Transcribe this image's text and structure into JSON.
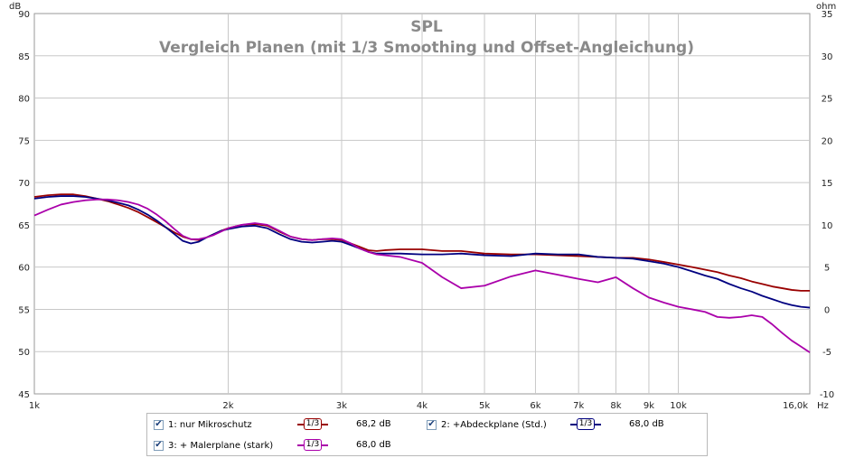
{
  "chart_data": {
    "type": "line",
    "title": "SPL",
    "subtitle": "Vergleich Planen (mit 1/3 Smoothing und Offset-Angleichung)",
    "xlabel": "Hz",
    "ylabel": "dB",
    "y2label": "ohm",
    "x_scale": "log",
    "xlim": [
      1000,
      16000
    ],
    "ylim": [
      45,
      90
    ],
    "y2lim": [
      -10,
      35
    ],
    "grid": true,
    "x_ticks": [
      {
        "value": 1000,
        "label": "1k"
      },
      {
        "value": 2000,
        "label": "2k"
      },
      {
        "value": 3000,
        "label": "3k"
      },
      {
        "value": 4000,
        "label": "4k"
      },
      {
        "value": 5000,
        "label": "5k"
      },
      {
        "value": 6000,
        "label": "6k"
      },
      {
        "value": 7000,
        "label": "7k"
      },
      {
        "value": 8000,
        "label": "8k"
      },
      {
        "value": 9000,
        "label": "9k"
      },
      {
        "value": 10000,
        "label": "10k"
      },
      {
        "value": 16000,
        "label": "16,0k"
      }
    ],
    "x_unit": "Hz",
    "y_ticks": [
      45,
      50,
      55,
      60,
      65,
      70,
      75,
      80,
      85,
      90
    ],
    "y2_ticks": [
      -10,
      -5,
      0,
      5,
      10,
      15,
      20,
      25,
      30,
      35
    ],
    "series": [
      {
        "name": "1: nur Mikroschutz",
        "color": "#990000",
        "x": [
          1000,
          1050,
          1100,
          1150,
          1200,
          1250,
          1300,
          1350,
          1400,
          1450,
          1500,
          1550,
          1600,
          1650,
          1700,
          1750,
          1800,
          1850,
          1900,
          1950,
          2000,
          2100,
          2200,
          2300,
          2400,
          2500,
          2600,
          2700,
          2800,
          2900,
          3000,
          3100,
          3200,
          3300,
          3400,
          3500,
          3700,
          4000,
          4300,
          4600,
          5000,
          5500,
          6000,
          6500,
          7000,
          7500,
          8000,
          8500,
          9000,
          9500,
          10000,
          10500,
          11000,
          11500,
          12000,
          12500,
          13000,
          13500,
          14000,
          14500,
          15000,
          15500,
          16000
        ],
        "y": [
          68.3,
          68.5,
          68.6,
          68.6,
          68.4,
          68.1,
          67.8,
          67.4,
          67.0,
          66.5,
          65.9,
          65.3,
          64.7,
          64.1,
          63.6,
          63.3,
          63.2,
          63.5,
          63.9,
          64.3,
          64.6,
          65.0,
          65.1,
          64.9,
          64.2,
          63.6,
          63.3,
          63.2,
          63.3,
          63.3,
          63.2,
          62.8,
          62.4,
          62.0,
          61.9,
          62.0,
          62.1,
          62.1,
          61.9,
          61.9,
          61.6,
          61.5,
          61.5,
          61.4,
          61.3,
          61.2,
          61.1,
          61.1,
          60.9,
          60.6,
          60.3,
          60.0,
          59.7,
          59.4,
          59.0,
          58.7,
          58.3,
          58.0,
          57.7,
          57.5,
          57.3,
          57.2,
          57.2
        ]
      },
      {
        "name": "2: +Abdeckplane (Std.)",
        "color": "#000080",
        "x": [
          1000,
          1050,
          1100,
          1150,
          1200,
          1250,
          1300,
          1350,
          1400,
          1450,
          1500,
          1550,
          1600,
          1650,
          1700,
          1750,
          1800,
          1850,
          1900,
          1950,
          2000,
          2100,
          2200,
          2300,
          2400,
          2500,
          2600,
          2700,
          2800,
          2900,
          3000,
          3100,
          3200,
          3300,
          3400,
          3500,
          3700,
          4000,
          4300,
          4600,
          5000,
          5500,
          6000,
          6500,
          7000,
          7500,
          8000,
          8500,
          9000,
          9500,
          10000,
          10500,
          11000,
          11500,
          12000,
          12500,
          13000,
          13500,
          14000,
          14500,
          15000,
          15500,
          16000
        ],
        "y": [
          68.1,
          68.3,
          68.4,
          68.4,
          68.3,
          68.1,
          67.9,
          67.6,
          67.3,
          66.8,
          66.2,
          65.5,
          64.7,
          63.9,
          63.1,
          62.8,
          63.0,
          63.5,
          63.9,
          64.3,
          64.5,
          64.8,
          64.9,
          64.6,
          63.9,
          63.3,
          63.0,
          62.9,
          63.0,
          63.1,
          63.0,
          62.6,
          62.2,
          61.8,
          61.6,
          61.6,
          61.6,
          61.5,
          61.5,
          61.6,
          61.4,
          61.3,
          61.6,
          61.5,
          61.5,
          61.2,
          61.1,
          61.0,
          60.7,
          60.4,
          60.0,
          59.5,
          59.0,
          58.6,
          58.0,
          57.5,
          57.1,
          56.6,
          56.2,
          55.8,
          55.5,
          55.3,
          55.2
        ]
      },
      {
        "name": "3: + Malerplane (stark)",
        "color": "#aa00aa",
        "x": [
          1000,
          1050,
          1100,
          1150,
          1200,
          1250,
          1300,
          1350,
          1400,
          1450,
          1500,
          1550,
          1600,
          1650,
          1700,
          1750,
          1800,
          1850,
          1900,
          1950,
          2000,
          2100,
          2200,
          2300,
          2400,
          2500,
          2600,
          2700,
          2800,
          2900,
          3000,
          3100,
          3200,
          3300,
          3400,
          3500,
          3700,
          4000,
          4300,
          4600,
          5000,
          5500,
          6000,
          6500,
          7000,
          7500,
          8000,
          8500,
          9000,
          9500,
          10000,
          10500,
          11000,
          11500,
          12000,
          12500,
          13000,
          13500,
          14000,
          14500,
          15000,
          15500,
          16000
        ],
        "y": [
          66.1,
          66.8,
          67.4,
          67.7,
          67.9,
          68.0,
          68.0,
          67.9,
          67.7,
          67.4,
          66.9,
          66.2,
          65.4,
          64.5,
          63.7,
          63.3,
          63.3,
          63.5,
          63.8,
          64.2,
          64.6,
          65.0,
          65.2,
          65.0,
          64.3,
          63.6,
          63.3,
          63.2,
          63.3,
          63.4,
          63.3,
          62.8,
          62.2,
          61.8,
          61.5,
          61.4,
          61.2,
          60.5,
          58.8,
          57.5,
          57.8,
          58.9,
          59.6,
          59.1,
          58.6,
          58.2,
          58.8,
          57.5,
          56.4,
          55.8,
          55.3,
          55.0,
          54.7,
          54.1,
          54.0,
          54.1,
          54.3,
          54.1,
          53.2,
          52.2,
          51.3,
          50.6,
          49.9
        ]
      }
    ],
    "legend": {
      "placement": "bottom",
      "items": [
        {
          "label": "1: nur Mikroschutz",
          "smoothing": "1/3",
          "value": "68,2 dB",
          "color": "#990000",
          "checked": true
        },
        {
          "label": "2: +Abdeckplane (Std.)",
          "smoothing": "1/3",
          "value": "68,0 dB",
          "color": "#000080",
          "checked": true
        },
        {
          "label": "3: + Malerplane (stark)",
          "smoothing": "1/3",
          "value": "68,0 dB",
          "color": "#aa00aa",
          "checked": true
        }
      ]
    }
  }
}
